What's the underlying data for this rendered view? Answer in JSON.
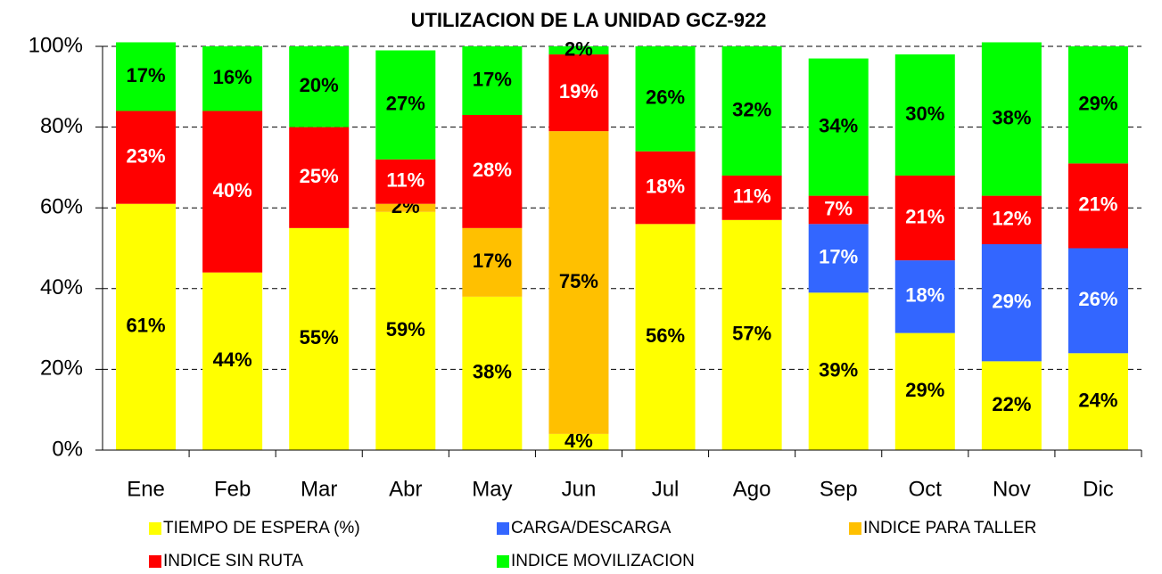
{
  "chart_data": {
    "type": "stacked_bar",
    "title": "UTILIZACION DE LA UNIDAD GCZ-922",
    "categories": [
      "Ene",
      "Feb",
      "Mar",
      "Abr",
      "May",
      "Jun",
      "Jul",
      "Ago",
      "Sep",
      "Oct",
      "Nov",
      "Dic"
    ],
    "ylim": [
      0,
      100
    ],
    "yticks": [
      {
        "value": 0,
        "label": "0%"
      },
      {
        "value": 20,
        "label": "20%"
      },
      {
        "value": 40,
        "label": "40%"
      },
      {
        "value": 60,
        "label": "60%"
      },
      {
        "value": 80,
        "label": "80%"
      },
      {
        "value": 100,
        "label": "100%"
      }
    ],
    "grid": true,
    "legend": "bottom",
    "series": [
      {
        "name": "TIEMPO DE ESPERA (%)",
        "color": "#ffff00",
        "values": [
          61,
          44,
          55,
          59,
          38,
          4,
          56,
          57,
          39,
          29,
          22,
          24
        ],
        "value_labels": [
          "61%",
          "44%",
          "55%",
          "59%",
          "38%",
          "4%",
          "56%",
          "57%",
          "39%",
          "29%",
          "22%",
          "24%"
        ]
      },
      {
        "name": "CARGA/DESCARGA",
        "color": "#3366ff",
        "values": [
          null,
          null,
          null,
          null,
          null,
          null,
          null,
          null,
          17,
          18,
          29,
          26
        ],
        "value_labels": [
          null,
          null,
          null,
          null,
          null,
          null,
          null,
          null,
          "17%",
          "18%",
          "29%",
          "26%"
        ]
      },
      {
        "name": "INDICE PARA TALLER",
        "color": "#ffc000",
        "values": [
          null,
          null,
          null,
          2,
          17,
          75,
          null,
          null,
          null,
          null,
          null,
          null
        ],
        "value_labels": [
          null,
          null,
          null,
          "2%",
          "17%",
          "75%",
          null,
          null,
          null,
          null,
          null,
          null
        ]
      },
      {
        "name": "INDICE SIN RUTA",
        "color": "#ff0000",
        "values": [
          23,
          40,
          25,
          11,
          28,
          19,
          18,
          11,
          7,
          21,
          12,
          21
        ],
        "value_labels": [
          "23%",
          "40%",
          "25%",
          "11%",
          "28%",
          "19%",
          "18%",
          "11%",
          "7%",
          "21%",
          "12%",
          "21%"
        ]
      },
      {
        "name": "INDICE MOVILIZACION",
        "color": "#00ff00",
        "values": [
          17,
          16,
          20,
          27,
          17,
          2,
          26,
          32,
          34,
          30,
          38,
          29
        ],
        "value_labels": [
          "17%",
          "16%",
          "20%",
          "27%",
          "17%",
          "2%",
          "26%",
          "32%",
          "34%",
          "30%",
          "38%",
          "29%"
        ]
      }
    ]
  }
}
